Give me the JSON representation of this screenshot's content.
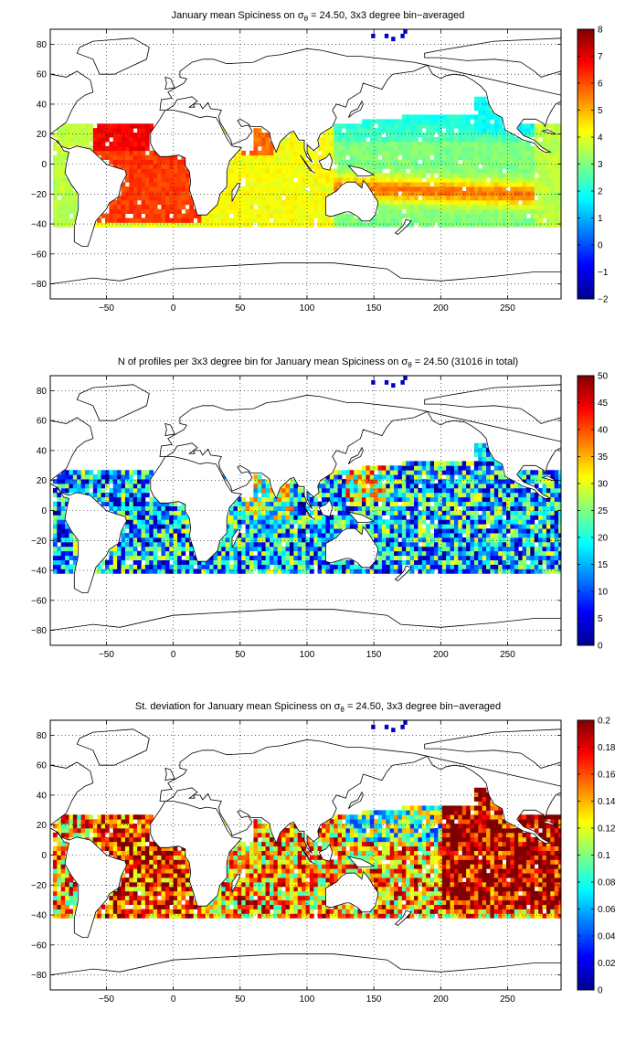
{
  "chart_data": [
    {
      "type": "heatmap",
      "title_prefix": "January mean Spiciness on ",
      "title_sigma": "σ",
      "title_sub": "θ",
      "title_suffix": " = 24.50, 3x3 degree bin−averaged",
      "x_ticks": [
        -50,
        0,
        50,
        100,
        150,
        200,
        250
      ],
      "y_ticks": [
        80,
        60,
        40,
        20,
        0,
        -20,
        -40,
        -60,
        -80
      ],
      "xlim": [
        -92,
        290
      ],
      "ylim": [
        -90,
        90
      ],
      "grid": true,
      "colormap": "jet",
      "clim": [
        -2,
        8
      ],
      "colorbar_ticks": [
        8,
        7,
        6,
        5,
        4,
        3,
        2,
        1,
        0,
        -1,
        -2
      ],
      "variable": "spice"
    },
    {
      "type": "heatmap",
      "title_prefix": "N of profiles per 3x3 degree bin for January mean Spiciness on ",
      "title_sigma": "σ",
      "title_sub": "θ",
      "title_suffix": " = 24.50 (31016 in total)",
      "x_ticks": [
        -50,
        0,
        50,
        100,
        150,
        200,
        250
      ],
      "y_ticks": [
        80,
        60,
        40,
        20,
        0,
        -20,
        -40,
        -60,
        -80
      ],
      "xlim": [
        -92,
        290
      ],
      "ylim": [
        -90,
        90
      ],
      "grid": true,
      "colormap": "jet",
      "clim": [
        0,
        50
      ],
      "colorbar_ticks": [
        50,
        45,
        40,
        35,
        30,
        25,
        20,
        15,
        10,
        5,
        0
      ],
      "variable": "count"
    },
    {
      "type": "heatmap",
      "title_prefix": "St. deviation for January mean Spiciness on ",
      "title_sigma": "σ",
      "title_sub": "θ",
      "title_suffix": " = 24.50, 3x3 degree bin−averaged",
      "x_ticks": [
        -50,
        0,
        50,
        100,
        150,
        200,
        250
      ],
      "y_ticks": [
        80,
        60,
        40,
        20,
        0,
        -20,
        -40,
        -60,
        -80
      ],
      "xlim": [
        -92,
        290
      ],
      "ylim": [
        -90,
        90
      ],
      "grid": true,
      "colormap": "jet",
      "clim": [
        0,
        0.2
      ],
      "colorbar_ticks": [
        0.2,
        0.18,
        0.16,
        0.14,
        0.12,
        0.1,
        0.08,
        0.06,
        0.04,
        0.02,
        0
      ],
      "variable": "std"
    }
  ]
}
